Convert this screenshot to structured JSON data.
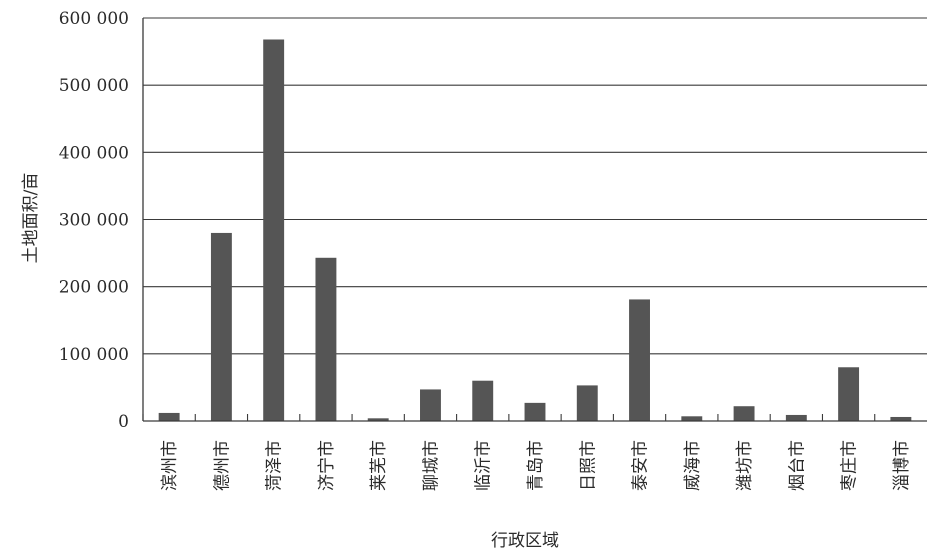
{
  "chart_data": {
    "type": "bar",
    "title": "",
    "xlabel": "行政区域",
    "ylabel": "土地面积/亩",
    "categories": [
      "滨州市",
      "德州市",
      "菏泽市",
      "济宁市",
      "莱芜市",
      "聊城市",
      "临沂市",
      "青岛市",
      "日照市",
      "泰安市",
      "威海市",
      "潍坊市",
      "烟台市",
      "枣庄市",
      "淄博市"
    ],
    "values": [
      12000,
      280000,
      568000,
      243000,
      4000,
      47000,
      60000,
      27000,
      53000,
      181000,
      7000,
      22000,
      9000,
      80000,
      6000
    ],
    "ylim": [
      0,
      600000
    ],
    "yticks": [
      0,
      100000,
      200000,
      300000,
      400000,
      500000,
      600000
    ],
    "ytick_labels": [
      "0",
      "100 000",
      "200 000",
      "300 000",
      "400 000",
      "500 000",
      "600 000"
    ],
    "grid": true,
    "legend": "none",
    "bar_color": "#555555",
    "grid_color": "#3a3a3a"
  }
}
